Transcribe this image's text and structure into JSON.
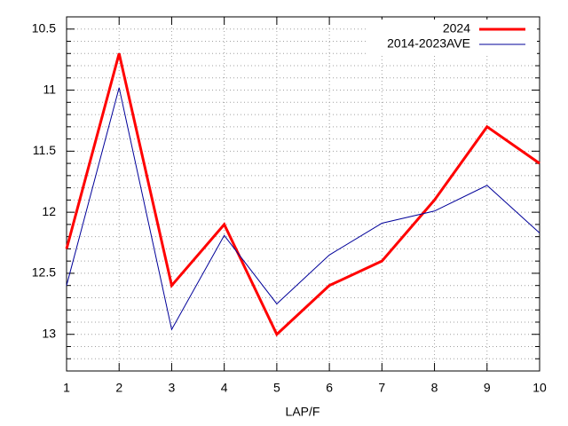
{
  "chart_data": {
    "type": "line",
    "x_label": "LAP/F",
    "x": [
      1,
      2,
      3,
      4,
      5,
      6,
      7,
      8,
      9,
      10
    ],
    "series": [
      {
        "name": "2024",
        "color": "#ff0000",
        "width": 3,
        "values": [
          12.3,
          10.7,
          12.6,
          12.1,
          13.0,
          12.6,
          12.4,
          11.9,
          11.3,
          11.6
        ]
      },
      {
        "name": "2014-2023AVE",
        "color": "#000099",
        "width": 1,
        "values": [
          12.6,
          10.98,
          12.96,
          12.19,
          12.75,
          12.35,
          12.09,
          11.99,
          11.78,
          12.17
        ]
      }
    ],
    "xlim": [
      1,
      10
    ],
    "xticks": [
      1,
      2,
      3,
      4,
      5,
      6,
      7,
      8,
      9,
      10
    ],
    "ylim": [
      10.4,
      13.3
    ],
    "y_reversed": true,
    "yticks": [
      10.5,
      11,
      11.5,
      12,
      12.5,
      13
    ],
    "yminorticks": [
      10.6,
      10.7,
      10.8,
      10.9,
      11.1,
      11.2,
      11.3,
      11.4,
      11.6,
      11.7,
      11.8,
      11.9,
      12.1,
      12.2,
      12.3,
      12.4,
      12.6,
      12.7,
      12.8,
      12.9,
      13.1,
      13.2
    ],
    "grid": true,
    "legend": "top-right"
  }
}
